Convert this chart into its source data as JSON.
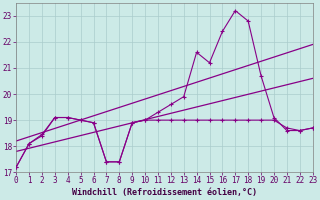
{
  "xlabel": "Windchill (Refroidissement éolien,°C)",
  "background_color": "#cceae7",
  "grid_color": "#aacccc",
  "line_color": "#880088",
  "x_values": [
    0,
    1,
    2,
    3,
    4,
    5,
    6,
    7,
    8,
    9,
    10,
    11,
    12,
    13,
    14,
    15,
    16,
    17,
    18,
    19,
    20,
    21,
    22,
    23
  ],
  "series1": [
    17.2,
    18.1,
    18.4,
    19.1,
    19.1,
    19.0,
    18.9,
    17.4,
    17.4,
    18.9,
    19.0,
    19.3,
    19.6,
    19.9,
    21.6,
    21.2,
    22.4,
    23.2,
    22.8,
    20.7,
    19.1,
    18.6,
    18.6,
    18.7
  ],
  "series2": [
    17.2,
    18.1,
    18.45,
    19.1,
    19.1,
    19.0,
    18.9,
    17.4,
    17.4,
    18.9,
    19.0,
    19.0,
    19.0,
    19.0,
    19.0,
    19.0,
    19.0,
    19.0,
    19.0,
    19.0,
    19.0,
    18.7,
    18.6,
    18.7
  ],
  "trend1_x": [
    0,
    23
  ],
  "trend1_y": [
    18.2,
    21.9
  ],
  "trend2_x": [
    0,
    23
  ],
  "trend2_y": [
    17.8,
    20.6
  ],
  "ylim": [
    17,
    23.5
  ],
  "xlim": [
    0,
    23
  ],
  "yticks": [
    17,
    18,
    19,
    20,
    21,
    22,
    23
  ],
  "xticks": [
    0,
    1,
    2,
    3,
    4,
    5,
    6,
    7,
    8,
    9,
    10,
    11,
    12,
    13,
    14,
    15,
    16,
    17,
    18,
    19,
    20,
    21,
    22,
    23
  ]
}
